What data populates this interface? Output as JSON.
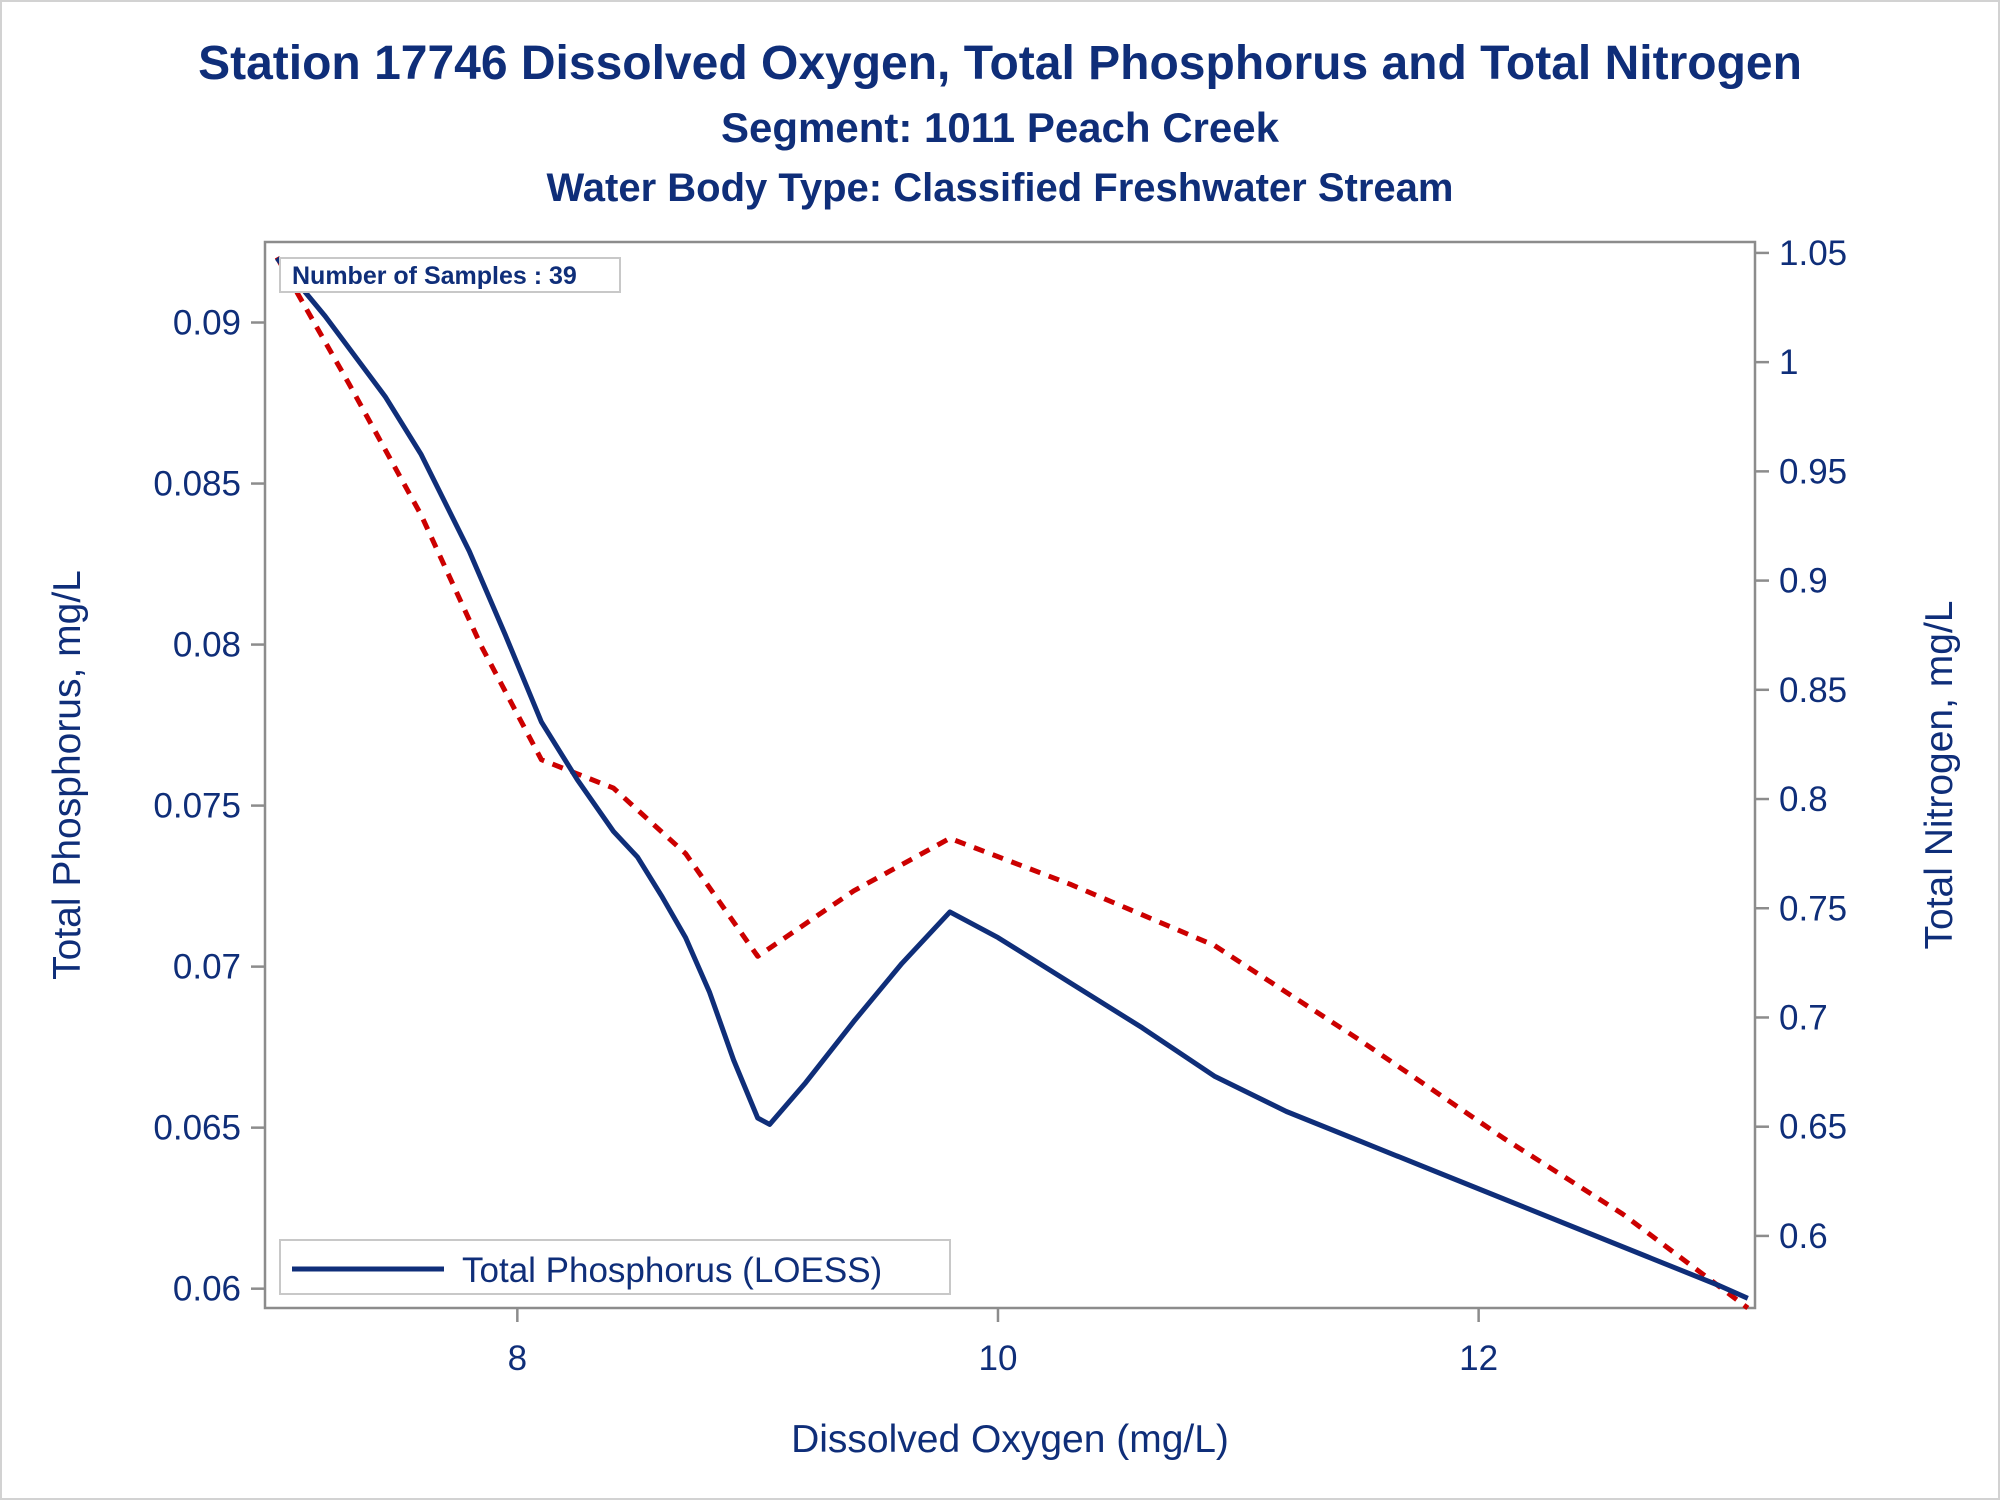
{
  "title": "Station 17746  Dissolved Oxygen, Total Phosphorus and Total Nitrogen",
  "subtitle1": "Segment: 1011  Peach Creek",
  "subtitle2": "Water Body Type: Classified Freshwater Stream",
  "inset": {
    "text": "Number of Samples : 39"
  },
  "colors": {
    "phosphorus": "#0f2e79",
    "nitrogen": "#cc0000",
    "text": "#0f2e79",
    "frame": "#8c8c8c"
  },
  "chart_data": {
    "type": "line",
    "title": "Station 17746  Dissolved Oxygen, Total Phosphorus and Total Nitrogen",
    "xlabel": "Dissolved Oxygen (mg/L)",
    "ylabel": "Total Phosphorus, mg/L",
    "y2label": "Total Nitrogen, mg/L",
    "xlim": [
      6.95,
      13.15
    ],
    "ylim": [
      0.0594,
      0.0925
    ],
    "y2lim": [
      0.567,
      1.055
    ],
    "xticks": [
      8,
      10,
      12
    ],
    "xtick_labels": [
      "8",
      "10",
      "12"
    ],
    "yticks": [
      0.06,
      0.065,
      0.07,
      0.075,
      0.08,
      0.085,
      0.09
    ],
    "ytick_labels": [
      "0.06",
      "0.065",
      "0.07",
      "0.075",
      "0.08",
      "0.085",
      "0.09"
    ],
    "y2ticks": [
      0.6,
      0.65,
      0.7,
      0.75,
      0.8,
      0.85,
      0.9,
      0.95,
      1.0,
      1.05
    ],
    "y2tick_labels": [
      "0.6",
      "0.65",
      "0.7",
      "0.75",
      "0.8",
      "0.85",
      "0.9",
      "0.95",
      "1",
      "1.05"
    ],
    "grid": false,
    "legend": {
      "position": "bottom-left",
      "entries": [
        "Total Phosphorus (LOESS)"
      ]
    },
    "series": [
      {
        "name": "Total Phosphorus (LOESS)",
        "axis": "left",
        "style": "solid",
        "x": [
          7.0,
          7.2,
          7.45,
          7.6,
          7.8,
          7.95,
          8.1,
          8.25,
          8.4,
          8.5,
          8.6,
          8.7,
          8.8,
          8.9,
          9.0,
          9.05,
          9.2,
          9.4,
          9.6,
          9.8,
          10.0,
          10.3,
          10.6,
          10.9,
          11.2,
          11.5,
          11.8,
          12.1,
          12.4,
          12.7,
          13.0,
          13.12
        ],
        "y": [
          0.092,
          0.0902,
          0.0877,
          0.0859,
          0.0829,
          0.0803,
          0.0776,
          0.0758,
          0.0742,
          0.0734,
          0.0722,
          0.0709,
          0.0692,
          0.0671,
          0.0653,
          0.0651,
          0.0664,
          0.0683,
          0.0701,
          0.0717,
          0.0709,
          0.0695,
          0.0681,
          0.0666,
          0.0655,
          0.0646,
          0.0637,
          0.0628,
          0.0619,
          0.061,
          0.0601,
          0.0597
        ]
      },
      {
        "name": "Total Nitrogen",
        "axis": "right",
        "style": "dashed",
        "x": [
          7.0,
          7.3,
          7.6,
          7.85,
          8.1,
          8.4,
          8.7,
          9.0,
          9.4,
          9.8,
          10.3,
          10.9,
          11.5,
          12.1,
          12.6,
          13.12
        ],
        "y": [
          1.048,
          0.99,
          0.93,
          0.87,
          0.818,
          0.805,
          0.775,
          0.728,
          0.758,
          0.782,
          0.761,
          0.733,
          0.69,
          0.645,
          0.61,
          0.567
        ]
      }
    ]
  }
}
